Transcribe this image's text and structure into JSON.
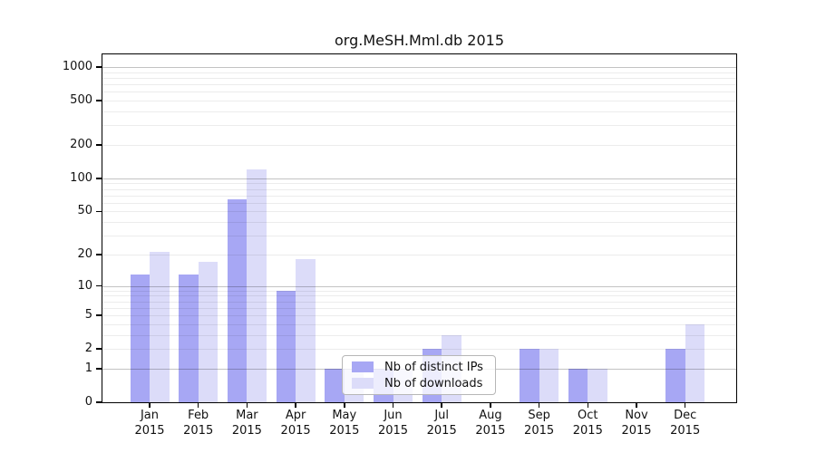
{
  "chart_data": {
    "type": "bar",
    "title": "org.MeSH.Mml.db 2015",
    "categories": [
      "Jan",
      "Feb",
      "Mar",
      "Apr",
      "May",
      "Jun",
      "Jul",
      "Aug",
      "Sep",
      "Oct",
      "Nov",
      "Dec"
    ],
    "year_label": "2015",
    "series": [
      {
        "name": "Nb of distinct IPs",
        "color": "#a7a7f4",
        "values": [
          13,
          13,
          65,
          9,
          1,
          1,
          2,
          0,
          2,
          1,
          0,
          2
        ]
      },
      {
        "name": "Nb of downloads",
        "color": "#dcdcf9",
        "values": [
          21,
          17,
          120,
          18,
          1,
          1,
          3,
          0,
          2,
          1,
          0,
          4
        ]
      }
    ],
    "y_axis": {
      "scale": "log10(1+x)",
      "ticks": [
        0,
        1,
        2,
        5,
        10,
        20,
        50,
        100,
        200,
        500,
        1000
      ],
      "max": 1300,
      "grid": "on",
      "major_grid_color": "#c3c3c3",
      "minor_grid_color": "#ebebeb"
    },
    "x_axis": {
      "label_lines": 2
    },
    "legend": {
      "position": "bottom-center-left",
      "background": "#ffffff",
      "border_color": "#b7b7b7"
    }
  }
}
